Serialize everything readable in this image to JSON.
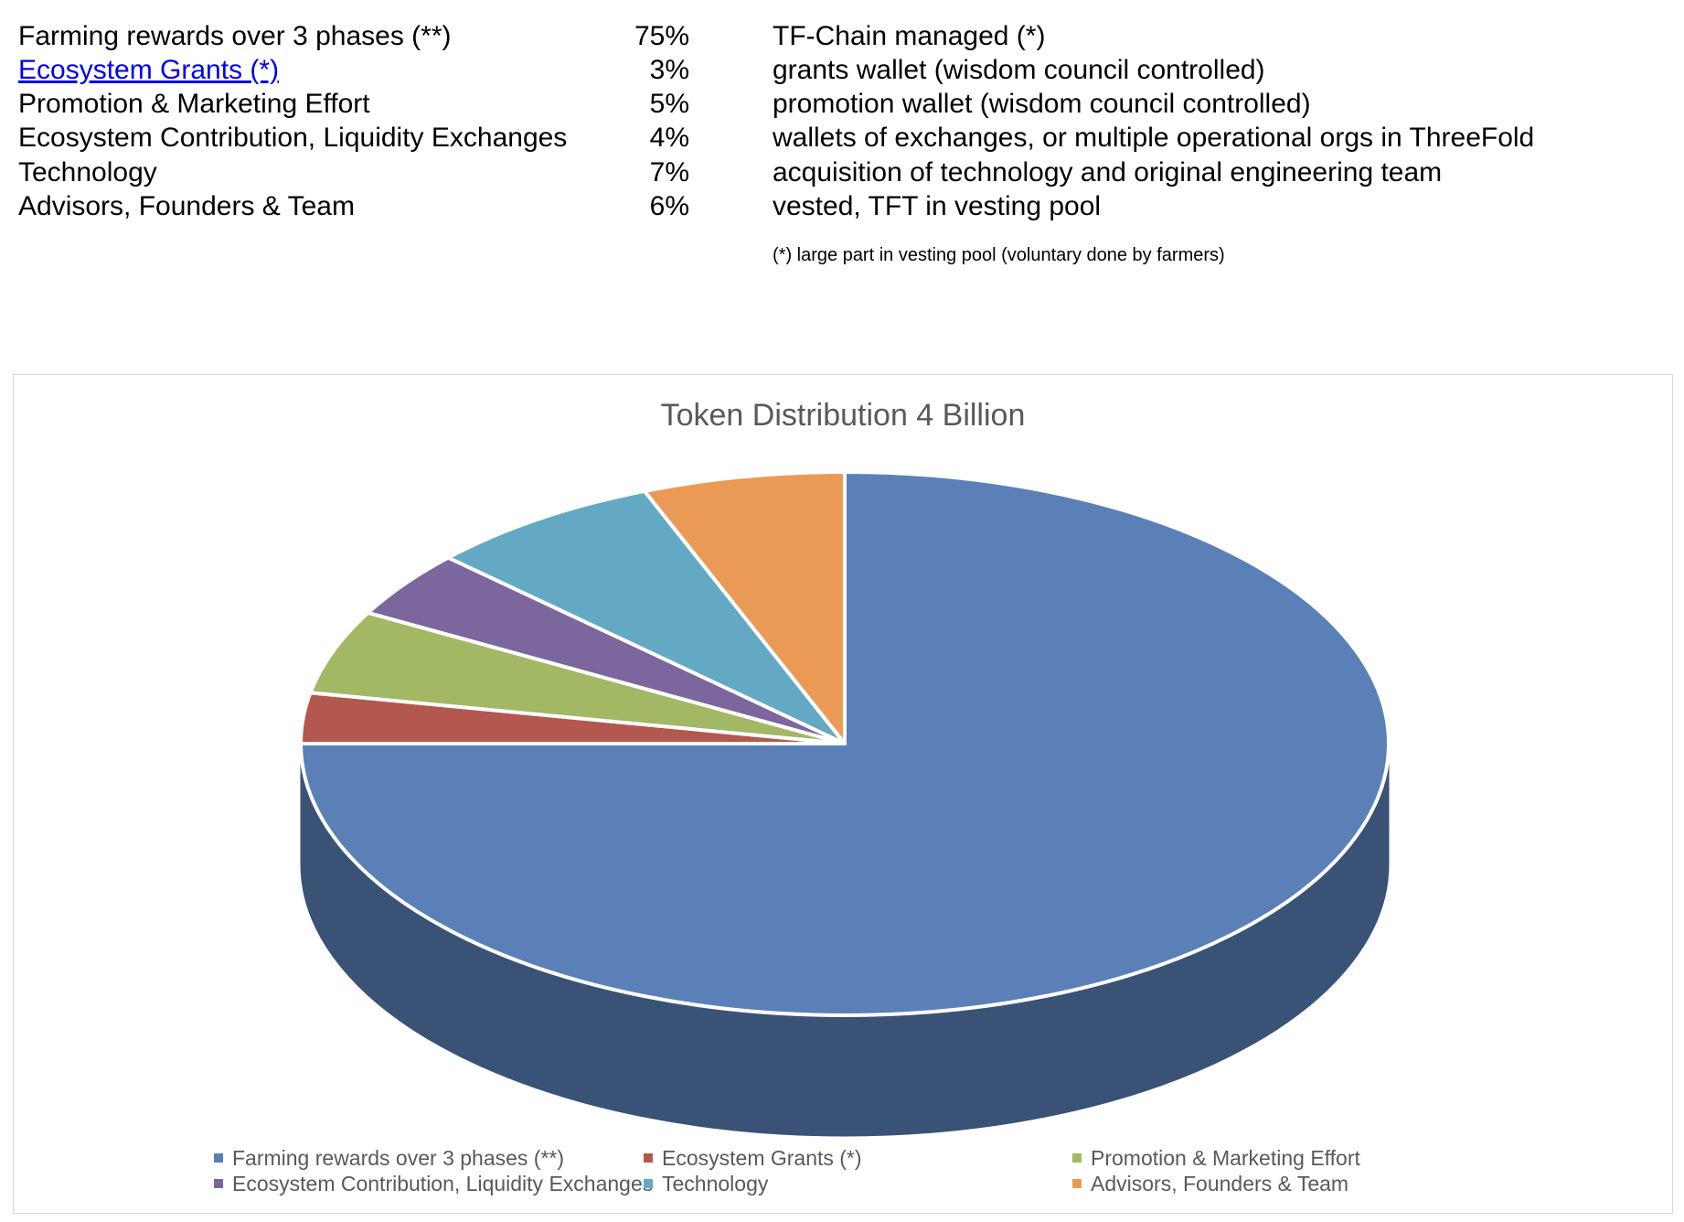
{
  "table": {
    "rows": [
      {
        "name": "Farming rewards over 3 phases (**)",
        "pct": "75%",
        "note": "TF-Chain managed (*)",
        "link": false
      },
      {
        "name": "Ecosystem Grants  (*)",
        "pct": "3%",
        "note": "grants wallet (wisdom council controlled)",
        "link": true
      },
      {
        "name": "Promotion & Marketing Effort",
        "pct": "5%",
        "note": "promotion wallet (wisdom council controlled)",
        "link": false
      },
      {
        "name": "Ecosystem Contribution, Liquidity Exchanges",
        "pct": "4%",
        "note": "wallets of exchanges, or multiple operational orgs in ThreeFold",
        "link": false
      },
      {
        "name": "Technology",
        "pct": "7%",
        "note": "acquisition of technology and original engineering team",
        "link": false
      },
      {
        "name": "Advisors, Founders & Team",
        "pct": "6%",
        "note": "vested, TFT in vesting pool",
        "link": false
      }
    ],
    "footnote": "(*) large part in vesting pool (voluntary done by farmers)"
  },
  "chart_data": {
    "type": "pie",
    "variant": "3d",
    "title": "Token Distribution 4 Billion",
    "start": "12 o'clock",
    "direction": "clockwise",
    "slices": [
      {
        "label": "Farming rewards over 3 phases (**)",
        "value": 75,
        "color": "#5a80b7"
      },
      {
        "label": "Ecosystem Grants  (*)",
        "value": 3,
        "color": "#b3574f"
      },
      {
        "label": "Promotion & Marketing Effort",
        "value": 5,
        "color": "#a2b865"
      },
      {
        "label": "Ecosystem Contribution, Liquidity Exchanges",
        "value": 4,
        "color": "#7b669d"
      },
      {
        "label": "Technology",
        "value": 7,
        "color": "#64a9c4"
      },
      {
        "label": "Advisors, Founders & Team",
        "value": 6,
        "color": "#eb9a56"
      }
    ],
    "side_color": "#3a5276",
    "legend_position": "bottom"
  }
}
